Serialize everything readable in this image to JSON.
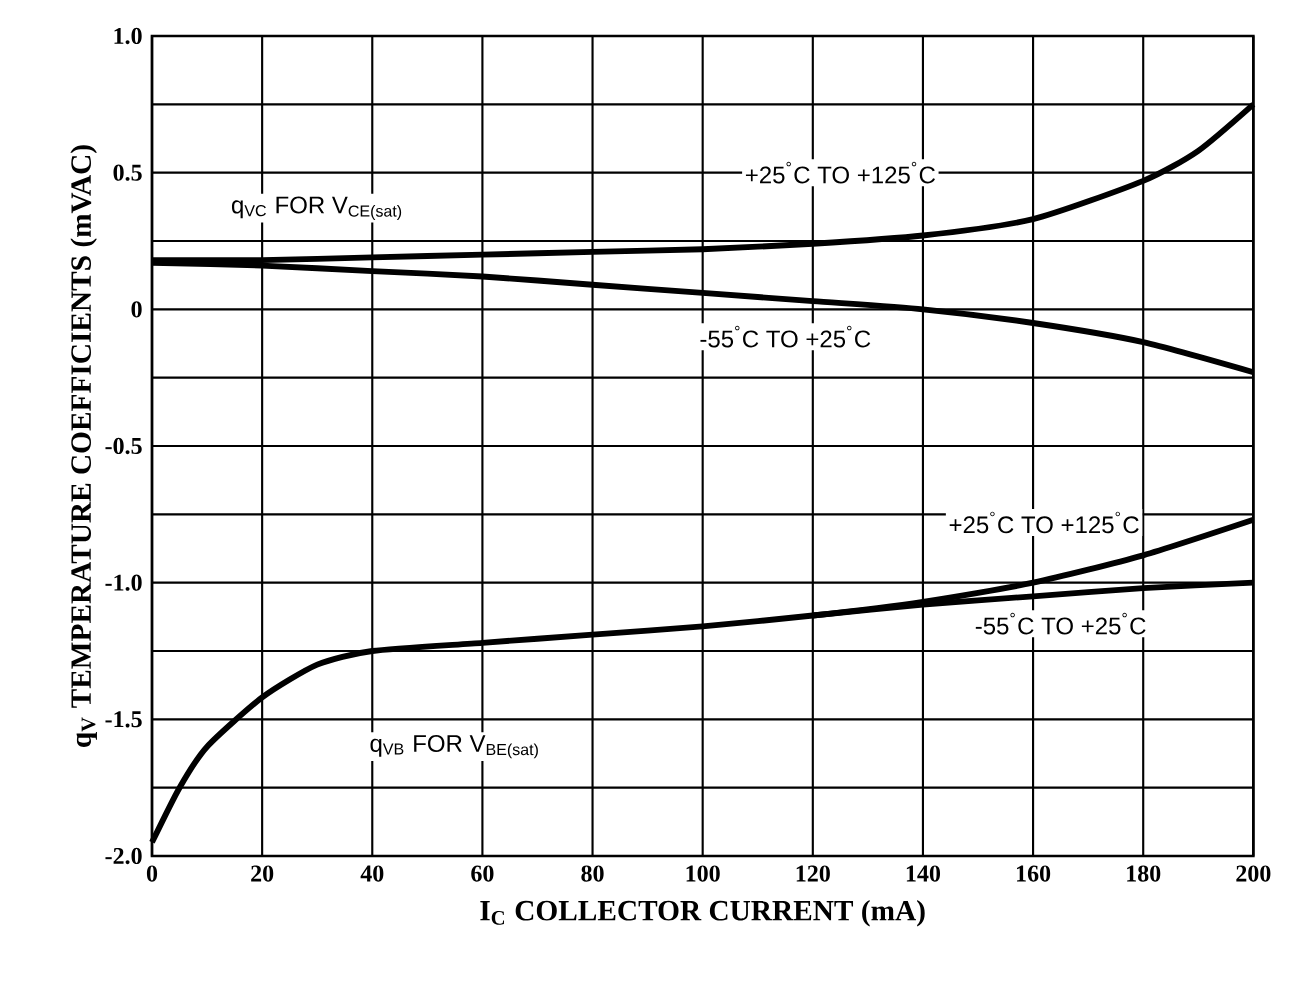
{
  "chart_data": {
    "type": "line",
    "xlabel": "I$_{C}$ COLLECTOR CURRENT (mA)",
    "ylabel": "q$_{V}$ TEMPERATURE COEFFICIENTS (mVAC)",
    "xlim": [
      0,
      200
    ],
    "xticks": [
      0,
      20,
      40,
      60,
      80,
      100,
      120,
      140,
      160,
      180,
      200
    ],
    "ylim": [
      -2.0,
      1.0
    ],
    "yticks": [
      {
        "value": -2.0,
        "label": "-2.0"
      },
      {
        "value": -1.75,
        "label": null
      },
      {
        "value": -1.5,
        "label": "-1.5"
      },
      {
        "value": -1.25,
        "label": null
      },
      {
        "value": -1.0,
        "label": "-1.0"
      },
      {
        "value": -0.75,
        "label": null
      },
      {
        "value": -0.5,
        "label": "-0.5"
      },
      {
        "value": -0.25,
        "label": null
      },
      0,
      {
        "value": 0.25,
        "label": null
      },
      {
        "value": 0.5,
        "label": "0.5"
      },
      {
        "value": 0.75,
        "label": null
      },
      {
        "value": 1.0,
        "label": "1.0"
      }
    ],
    "grid": true,
    "marker": "none",
    "line_style": "solid",
    "series": [
      {
        "name": "+25$^{°}$C TO +125$^{°}$C",
        "color": "#000000",
        "x": [
          0,
          20,
          40,
          60,
          80,
          100,
          120,
          140,
          160,
          180,
          190,
          200
        ],
        "values": [
          0.18,
          0.18,
          0.19,
          0.2,
          0.21,
          0.22,
          0.24,
          0.27,
          0.33,
          0.47,
          0.58,
          0.75
        ]
      },
      {
        "name": "-55$^{°}$C TO +25$^{°}$C",
        "color": "#000000",
        "x": [
          0,
          20,
          40,
          60,
          80,
          100,
          120,
          140,
          160,
          180,
          200
        ],
        "values": [
          0.17,
          0.16,
          0.14,
          0.12,
          0.09,
          0.06,
          0.03,
          0.0,
          -0.05,
          -0.12,
          -0.23
        ]
      },
      {
        "name": "+25$^{°}$C TO +125$^{°}$C",
        "color": "#000000",
        "x": [
          0,
          5,
          10,
          20,
          30,
          40,
          60,
          80,
          100,
          120,
          140,
          160,
          180,
          200
        ],
        "values": [
          -1.95,
          -1.75,
          -1.6,
          -1.42,
          -1.3,
          -1.25,
          -1.22,
          -1.19,
          -1.16,
          -1.12,
          -1.07,
          -1.0,
          -0.9,
          -0.77
        ]
      },
      {
        "name": "-55$^{°}$C TO +25$^{°}$C",
        "color": "#000000",
        "x": [
          120,
          140,
          160,
          180,
          200
        ],
        "values": [
          -1.12,
          -1.08,
          -1.05,
          -1.02,
          -1.0
        ]
      }
    ],
    "annotations": [
      "q$_{VC}$ FOR V$_{CE(sat)}$",
      "q$_{VB}$ FOR V$_{BE(sat)}$"
    ]
  }
}
